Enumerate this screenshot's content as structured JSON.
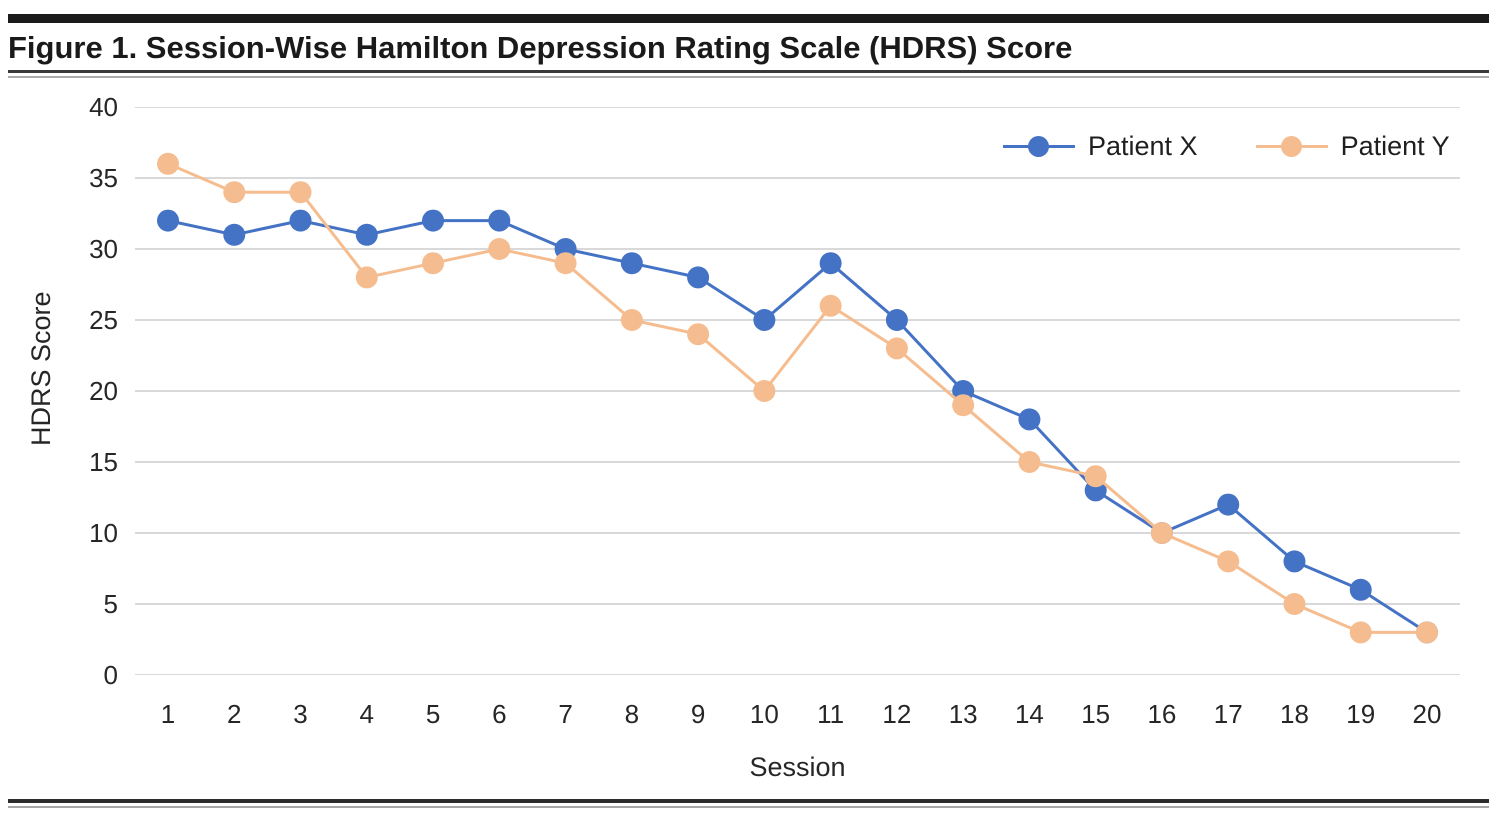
{
  "figure": {
    "title": "Figure 1. Session-Wise Hamilton Depression Rating Scale (HDRS) Score"
  },
  "chart_data": {
    "type": "line",
    "title": "Figure 1. Session-Wise Hamilton Depression Rating Scale (HDRS) Score",
    "xlabel": "Session",
    "ylabel": "HDRS Score",
    "categories": [
      "1",
      "2",
      "3",
      "4",
      "5",
      "6",
      "7",
      "8",
      "9",
      "10",
      "11",
      "12",
      "13",
      "14",
      "15",
      "16",
      "17",
      "18",
      "19",
      "20"
    ],
    "yticks": [
      0,
      5,
      10,
      15,
      20,
      25,
      30,
      35,
      40
    ],
    "ylim": [
      0,
      40
    ],
    "grid": true,
    "legend_position": "top-right",
    "series": [
      {
        "name": "Patient X",
        "color": "#4472C4",
        "values": [
          32,
          31,
          32,
          31,
          32,
          32,
          30,
          29,
          28,
          25,
          29,
          25,
          20,
          18,
          13,
          10,
          12,
          8,
          6,
          3
        ]
      },
      {
        "name": "Patient Y",
        "color": "#F5BD8F",
        "values": [
          36,
          34,
          34,
          28,
          29,
          30,
          29,
          25,
          24,
          20,
          26,
          23,
          19,
          15,
          14,
          10,
          8,
          5,
          3,
          3
        ]
      }
    ]
  },
  "colors": {
    "gridline": "#D9D9D9",
    "title_text": "#1A1A1A",
    "tick_text": "#262626",
    "rule_dark": "#3A3A3A",
    "rule_light": "#ABABAB"
  }
}
